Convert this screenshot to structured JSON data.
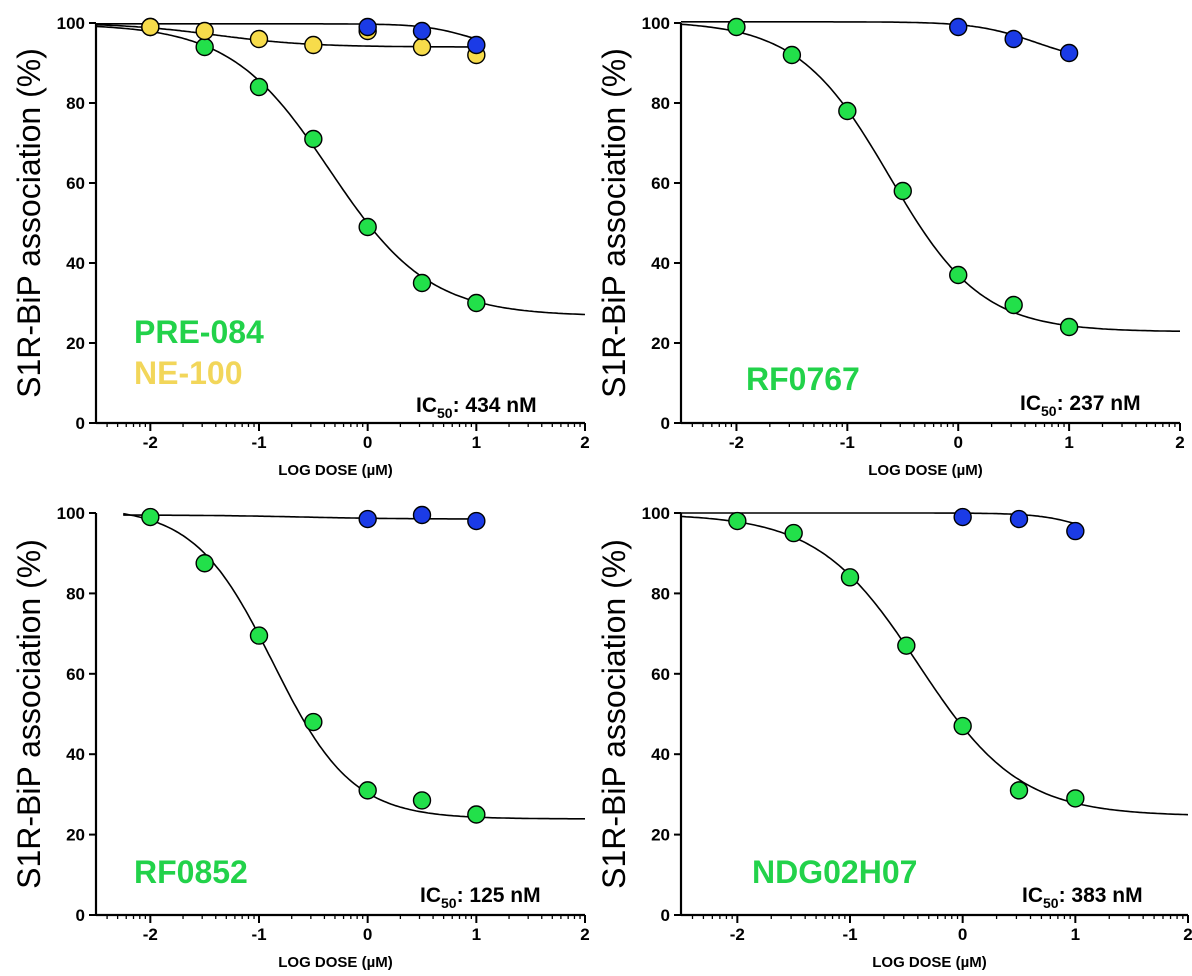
{
  "colors": {
    "agonist_green": "#22E04A",
    "control_blue": "#1B3BE6",
    "ne100_yellow": "#F7DC4B",
    "label_green": "#22D24A",
    "label_yellow": "#F2D65A"
  },
  "chart_data": [
    {
      "type": "scatter",
      "ylabel": "S1R-BiP association (%)",
      "xlabel": "LOG DOSE (µM)",
      "xlim": [
        -2.5,
        2
      ],
      "ylim": [
        0,
        100
      ],
      "xticks": [
        "-2",
        "-1",
        "0",
        "1",
        "2"
      ],
      "yticks": [
        "0",
        "20",
        "40",
        "60",
        "80",
        "100"
      ],
      "legend_labels": [
        "PRE-084",
        "NE-100"
      ],
      "ic50": {
        "prefix": "IC",
        "subscript": "50",
        "value": ": 434 nM"
      },
      "series": [
        {
          "name": "PRE-084",
          "color": "green",
          "x": [
            -2,
            -1.5,
            -1,
            -0.5,
            0,
            0.5,
            1
          ],
          "y": [
            99,
            94,
            84,
            71,
            49,
            35,
            30
          ]
        },
        {
          "name": "NE-100",
          "color": "yellow",
          "x": [
            -2,
            -1.5,
            -1,
            -0.5,
            0,
            0.5,
            1
          ],
          "y": [
            99,
            98,
            96,
            94.5,
            98,
            94,
            92
          ]
        },
        {
          "color": "blue",
          "x": [
            0,
            0.5,
            1
          ],
          "y": [
            99,
            98,
            94.5
          ]
        }
      ]
    },
    {
      "type": "scatter",
      "ylabel": "S1R-BiP association (%)",
      "xlabel": "LOG DOSE (µM)",
      "xlim": [
        -2.5,
        2
      ],
      "ylim": [
        0,
        100
      ],
      "xticks": [
        "-2",
        "-1",
        "0",
        "1",
        "2"
      ],
      "yticks": [
        "0",
        "20",
        "40",
        "60",
        "80",
        "100"
      ],
      "legend_labels": [
        "RF0767"
      ],
      "ic50": {
        "prefix": "IC",
        "subscript": "50",
        "value": ": 237 nM"
      },
      "series": [
        {
          "name": "RF0767",
          "color": "green",
          "x": [
            -2,
            -1.5,
            -1,
            -0.5,
            0,
            0.5,
            1
          ],
          "y": [
            99,
            92,
            78,
            58,
            37,
            29.5,
            24
          ]
        },
        {
          "color": "blue",
          "x": [
            0,
            0.5,
            1
          ],
          "y": [
            99,
            96,
            92.5
          ]
        }
      ]
    },
    {
      "type": "scatter",
      "ylabel": "S1R-BiP association (%)",
      "xlabel": "LOG DOSE (µM)",
      "xlim": [
        -2.5,
        2
      ],
      "ylim": [
        0,
        100
      ],
      "xticks": [
        "-2",
        "-1",
        "0",
        "1",
        "2"
      ],
      "yticks": [
        "0",
        "20",
        "40",
        "60",
        "80",
        "100"
      ],
      "legend_labels": [
        "RF0852"
      ],
      "ic50": {
        "prefix": "IC",
        "subscript": "50",
        "value": ": 125 nM"
      },
      "series": [
        {
          "name": "RF0852",
          "color": "green",
          "x": [
            -2,
            -1.5,
            -1,
            -0.5,
            0,
            0.5,
            1
          ],
          "y": [
            99,
            87.5,
            69.5,
            48,
            31,
            28.5,
            25
          ]
        },
        {
          "color": "blue",
          "x": [
            0,
            0.5,
            1
          ],
          "y": [
            98.5,
            99.5,
            98
          ]
        }
      ]
    },
    {
      "type": "scatter",
      "ylabel": "S1R-BiP association (%)",
      "xlabel": "LOG DOSE (µM)",
      "xlim": [
        -2.5,
        2
      ],
      "ylim": [
        0,
        100
      ],
      "xticks": [
        "-2",
        "-1",
        "0",
        "1",
        "2"
      ],
      "yticks": [
        "0",
        "20",
        "40",
        "60",
        "80",
        "100"
      ],
      "legend_labels": [
        "NDG02H07"
      ],
      "ic50": {
        "prefix": "IC",
        "subscript": "50",
        "value": ": 383 nM"
      },
      "series": [
        {
          "name": "NDG02H07",
          "color": "green",
          "x": [
            -2,
            -1.5,
            -1,
            -0.5,
            0,
            0.5,
            1
          ],
          "y": [
            98,
            95,
            84,
            67,
            47,
            31,
            29
          ]
        },
        {
          "color": "blue",
          "x": [
            0,
            0.5,
            1
          ],
          "y": [
            99,
            98.5,
            95.5
          ]
        }
      ]
    }
  ]
}
